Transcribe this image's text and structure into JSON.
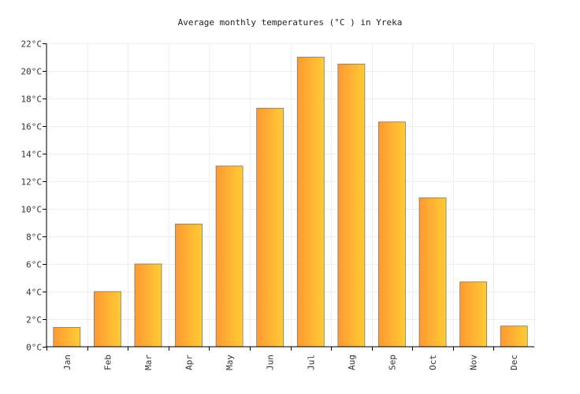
{
  "chart_data": {
    "type": "bar",
    "title": "Average monthly temperatures (°C ) in Yreka",
    "xlabel": "",
    "ylabel": "",
    "categories": [
      "Jan",
      "Feb",
      "Mar",
      "Apr",
      "May",
      "Jun",
      "Jul",
      "Aug",
      "Sep",
      "Oct",
      "Nov",
      "Dec"
    ],
    "values": [
      1.4,
      4.0,
      6.0,
      8.9,
      13.1,
      17.3,
      21.0,
      20.5,
      16.3,
      10.8,
      4.7,
      1.5
    ],
    "ylim": [
      0,
      22
    ],
    "yticks": [
      0,
      2,
      4,
      6,
      8,
      10,
      12,
      14,
      16,
      18,
      20,
      22
    ],
    "ytick_suffix": "°C",
    "grid": true,
    "colors": {
      "bar_left": "#ff9933",
      "bar_right": "#ffcc33",
      "bar_stroke": "#777777",
      "grid": "#eeeeee"
    }
  }
}
